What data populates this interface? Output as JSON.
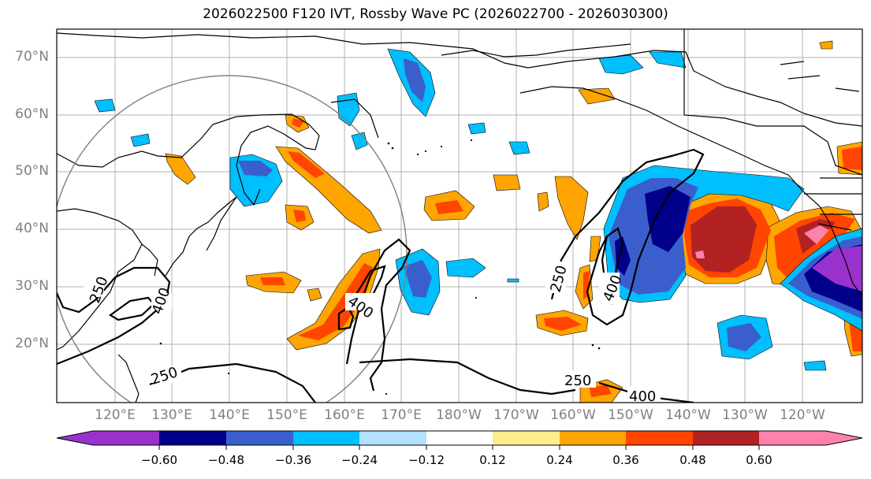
{
  "title": "2026022500 F120 IVT, Rossby Wave PC (2026022700 - 2026030300)",
  "map": {
    "latitude_labels": [
      "70°N",
      "60°N",
      "50°N",
      "40°N",
      "30°N",
      "20°N"
    ],
    "longitude_labels": [
      "120°E",
      "130°E",
      "140°E",
      "150°E",
      "160°E",
      "170°E",
      "180°W",
      "170°W",
      "160°W",
      "150°W",
      "140°W",
      "130°W",
      "120°W"
    ],
    "contour_labels": [
      "250",
      "400",
      "400",
      "250",
      "400",
      "250",
      "250",
      "400"
    ]
  },
  "colorbar": {
    "ticks": [
      "−0.60",
      "−0.48",
      "−0.36",
      "−0.24",
      "−0.12",
      "0.12",
      "0.24",
      "0.36",
      "0.48",
      "0.60"
    ],
    "colors": [
      "#9932cc",
      "#00008b",
      "#3a5fcd",
      "#00bfff",
      "#b0e2ff",
      "#ffffff",
      "#ffec8b",
      "#ffa500",
      "#ff4500",
      "#b22222",
      "#ff82ab"
    ]
  }
}
